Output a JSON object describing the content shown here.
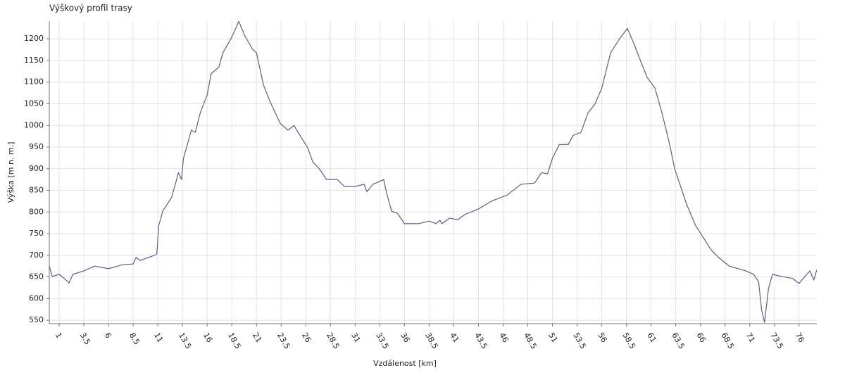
{
  "chart_data": {
    "type": "line",
    "title": "Výškový profil trasy",
    "xlabel": "Vzdálenost [km]",
    "ylabel": "Výška [m n. m.]",
    "grid": true,
    "xlim": [
      0,
      77.8
    ],
    "ylim": [
      542,
      1241
    ],
    "xticks": [
      1,
      3.5,
      6,
      8.5,
      11,
      13.5,
      16,
      18.5,
      21,
      23.5,
      26,
      28.5,
      31,
      33.5,
      36,
      38.5,
      41,
      43.5,
      46,
      48.5,
      51,
      53.5,
      56,
      58.5,
      61,
      63.5,
      66,
      68.5,
      71,
      73.5,
      76
    ],
    "yticks": [
      550,
      600,
      650,
      700,
      750,
      800,
      850,
      900,
      950,
      1000,
      1050,
      1100,
      1150,
      1200
    ],
    "x": [
      0,
      0.3,
      1,
      1.7,
      2,
      2.4,
      3.5,
      4.6,
      6,
      7.4,
      8.5,
      8.8,
      9.2,
      10.8,
      10.9,
      11.1,
      11.5,
      12.4,
      13.1,
      13.4,
      13.6,
      14.4,
      14.8,
      15.3,
      16,
      16.4,
      17.2,
      17.6,
      18.4,
      18.9,
      19.2,
      19.8,
      20.6,
      21,
      21.7,
      22.4,
      23.4,
      24.2,
      24.8,
      25.3,
      26.2,
      26.7,
      27.4,
      28.1,
      29.2,
      29.9,
      31,
      31.9,
      32.2,
      32.8,
      33.9,
      34.2,
      34.7,
      35.3,
      36,
      37.4,
      38.5,
      39.2,
      39.6,
      39.8,
      40.6,
      41.4,
      42.1,
      43.5,
      44.9,
      46.4,
      47.8,
      49.2,
      49.9,
      50.5,
      51,
      51.7,
      52.6,
      53.1,
      53.9,
      54.6,
      55.3,
      56,
      56.9,
      57.8,
      58.6,
      59.2,
      59.9,
      60.6,
      61.4,
      62.1,
      62.8,
      63.4,
      64.6,
      65.5,
      66.4,
      67.1,
      67.8,
      68.9,
      70.6,
      71.4,
      71.9,
      72.2,
      72.5,
      72.9,
      73.3,
      74.2,
      75.3,
      76,
      76.7,
      77.1,
      77.5,
      77.8
    ],
    "series": [
      {
        "color": "#5c5c8c",
        "values": [
          675,
          651,
          656,
          643,
          636,
          656,
          664,
          675,
          669,
          678,
          680,
          695,
          688,
          701,
          704,
          769,
          802,
          834,
          891,
          875,
          924,
          989,
          984,
          1029,
          1070,
          1119,
          1135,
          1168,
          1200,
          1224,
          1241,
          1208,
          1176,
          1168,
          1094,
          1054,
          1005,
          989,
          1000,
          981,
          948,
          916,
          899,
          875,
          875,
          859,
          859,
          864,
          847,
          864,
          875,
          843,
          802,
          797,
          773,
          773,
          779,
          773,
          781,
          773,
          786,
          782,
          794,
          807,
          826,
          839,
          864,
          867,
          891,
          888,
          924,
          956,
          956,
          977,
          984,
          1029,
          1049,
          1086,
          1168,
          1200,
          1224,
          1192,
          1151,
          1111,
          1086,
          1029,
          964,
          899,
          818,
          769,
          737,
          712,
          696,
          675,
          664,
          656,
          639,
          574,
          545,
          623,
          656,
          651,
          647,
          635,
          654,
          664,
          643,
          667
        ]
      }
    ]
  }
}
